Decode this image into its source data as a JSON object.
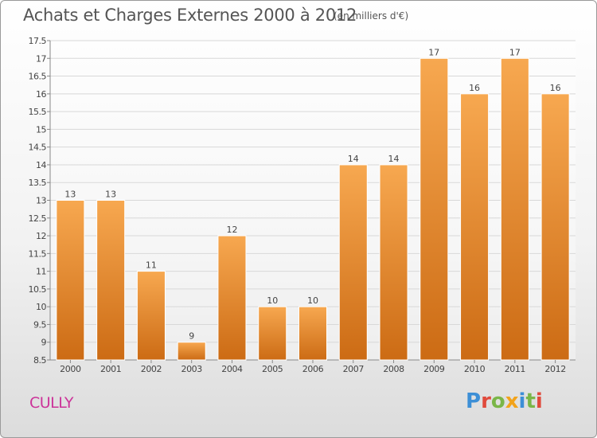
{
  "title": "Achats et Charges Externes 2000 à 2012",
  "unit_note": "(en milliers d'€)",
  "place": "CULLY",
  "logo": {
    "text": "Proxiti",
    "colors": [
      "#3d8fd6",
      "#e04a3c",
      "#7ab648",
      "#f2a31b",
      "#3d8fd6",
      "#7ab648",
      "#e04a3c"
    ]
  },
  "colors": {
    "bar_top": "#f7a850",
    "bar_bottom": "#cc6b14",
    "grid": "#d8d8d8",
    "axis": "#888888",
    "text": "#444444",
    "place": "#cc3399"
  },
  "chart_data": {
    "type": "bar",
    "title": "Achats et Charges Externes 2000 à 2012",
    "subtitle": "(en milliers d'€)",
    "xlabel": "",
    "ylabel": "",
    "categories": [
      "2000",
      "2001",
      "2002",
      "2003",
      "2004",
      "2005",
      "2006",
      "2007",
      "2008",
      "2009",
      "2010",
      "2011",
      "2012"
    ],
    "values": [
      13,
      13,
      11,
      9,
      12,
      10,
      10,
      14,
      14,
      17,
      16,
      17,
      16
    ],
    "data_labels": [
      "13",
      "13",
      "11",
      "9",
      "12",
      "10",
      "10",
      "14",
      "14",
      "17",
      "16",
      "17",
      "16"
    ],
    "ylim": [
      8.5,
      17.5
    ],
    "yticks": [
      8.5,
      9,
      9.5,
      10,
      10.5,
      11,
      11.5,
      12,
      12.5,
      13,
      13.5,
      14,
      14.5,
      15,
      15.5,
      16,
      16.5,
      17,
      17.5
    ],
    "ytick_labels": [
      "8.5",
      "9",
      "9.5",
      "10",
      "10.5",
      "11",
      "11.5",
      "12",
      "12.5",
      "13",
      "13.5",
      "14",
      "14.5",
      "15",
      "15.5",
      "16",
      "16.5",
      "17",
      "17.5"
    ],
    "grid": true,
    "legend": "none"
  }
}
